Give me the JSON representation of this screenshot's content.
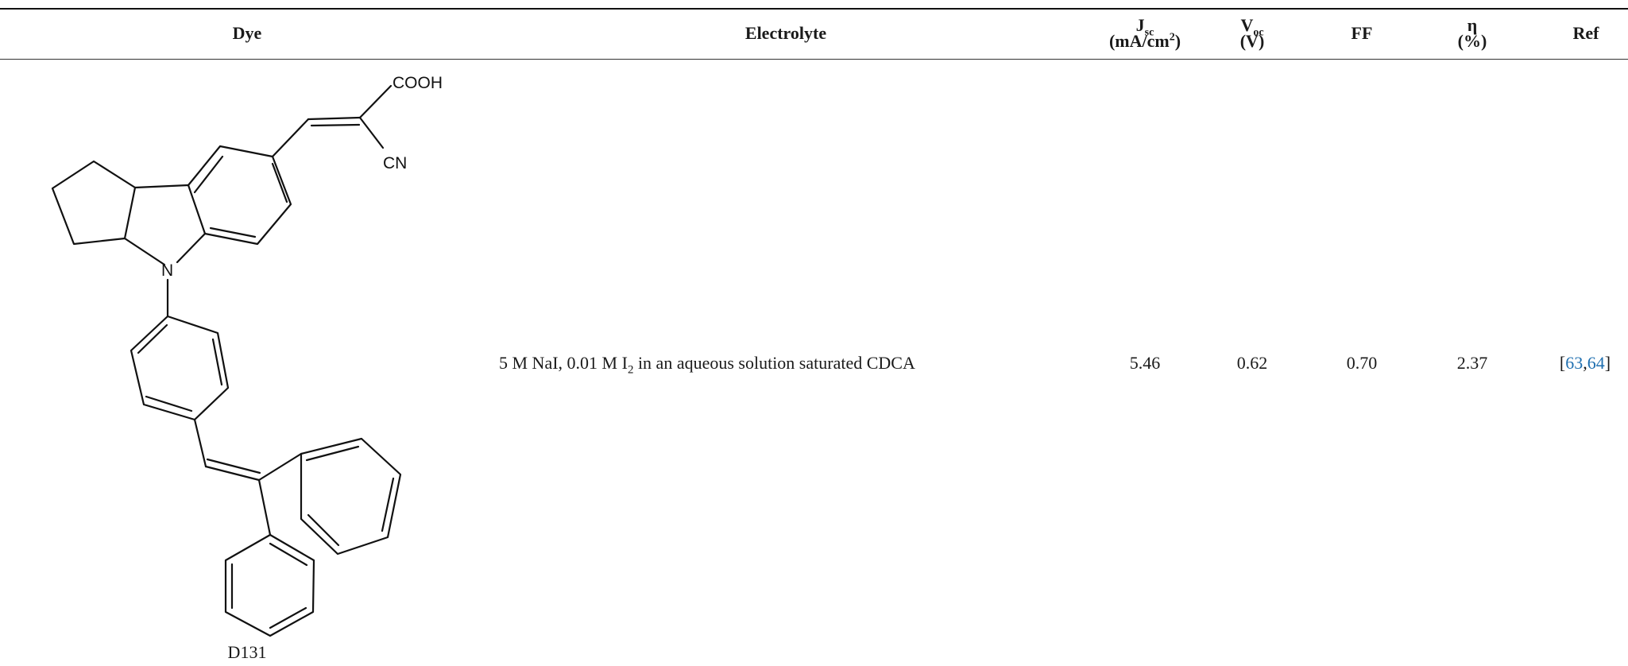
{
  "table": {
    "headers": {
      "dye": "Dye",
      "electrolyte": "Electrolyte",
      "jsc": {
        "symbol": "J",
        "sub": "sc",
        "unit_pre": "(mA/cm",
        "unit_sup": "2",
        "unit_post": ")"
      },
      "voc": {
        "symbol": "V",
        "sub": "oc",
        "unit": "(V)"
      },
      "ff": "FF",
      "eta": {
        "symbol": "η",
        "unit": "(%)"
      },
      "ref": "Ref"
    },
    "rows": [
      {
        "dye_label": "D131",
        "structure_labels": {
          "acid": "COOH",
          "nitrile": "CN",
          "nitrogen": "N"
        },
        "electrolyte": {
          "pre": "5 M NaI, 0.01 M I",
          "sub": "2",
          "post": " in an aqueous solution saturated CDCA"
        },
        "jsc": "5.46",
        "voc": "0.62",
        "ff": "0.70",
        "eta": "2.37",
        "ref": {
          "open": "[",
          "ref1": "63",
          "sep": ",",
          "ref2": "64",
          "close": "]"
        }
      }
    ]
  }
}
